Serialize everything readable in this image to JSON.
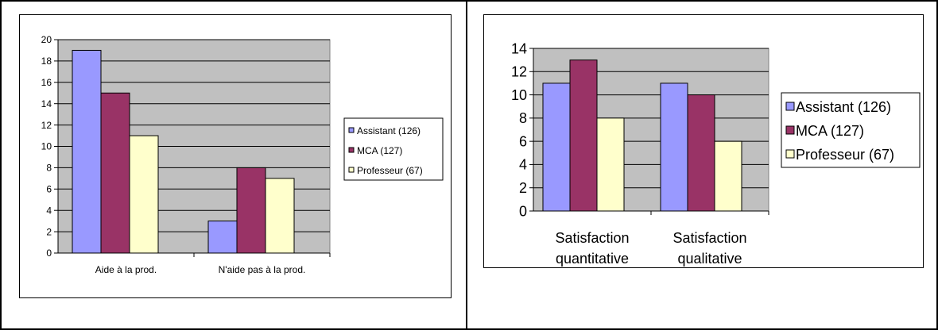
{
  "colors": {
    "assistant": "#9999ff",
    "mca": "#993366",
    "professeur": "#ffffcc",
    "plot_bg": "#c0c0c0",
    "gridline": "#000000"
  },
  "chart_data": [
    {
      "type": "bar",
      "title": "",
      "xlabel": "",
      "ylabel": "",
      "categories": [
        "Aide à la prod.",
        "N'aide pas à la prod."
      ],
      "series": [
        {
          "name": "Assistant (126)",
          "values": [
            19,
            3
          ]
        },
        {
          "name": "MCA (127)",
          "values": [
            15,
            8
          ]
        },
        {
          "name": "Professeur (67)",
          "values": [
            11,
            7
          ]
        }
      ],
      "ylim": [
        0,
        20
      ],
      "yticks": [
        "0",
        "2",
        "4",
        "6",
        "8",
        "10",
        "12",
        "14",
        "16",
        "18",
        "20"
      ],
      "grid": true,
      "legend": "right"
    },
    {
      "type": "bar",
      "title": "",
      "xlabel": "",
      "ylabel": "",
      "categories": [
        "Satisfaction quantitative",
        "Satisfaction qualitative"
      ],
      "series": [
        {
          "name": "Assistant (126)",
          "values": [
            11,
            11
          ]
        },
        {
          "name": "MCA (127)",
          "values": [
            13,
            10
          ]
        },
        {
          "name": "Professeur (67)",
          "values": [
            8,
            6
          ]
        }
      ],
      "ylim": [
        0,
        14
      ],
      "yticks": [
        "0",
        "2",
        "4",
        "6",
        "8",
        "10",
        "12",
        "14"
      ],
      "grid": true,
      "legend": "right"
    }
  ]
}
